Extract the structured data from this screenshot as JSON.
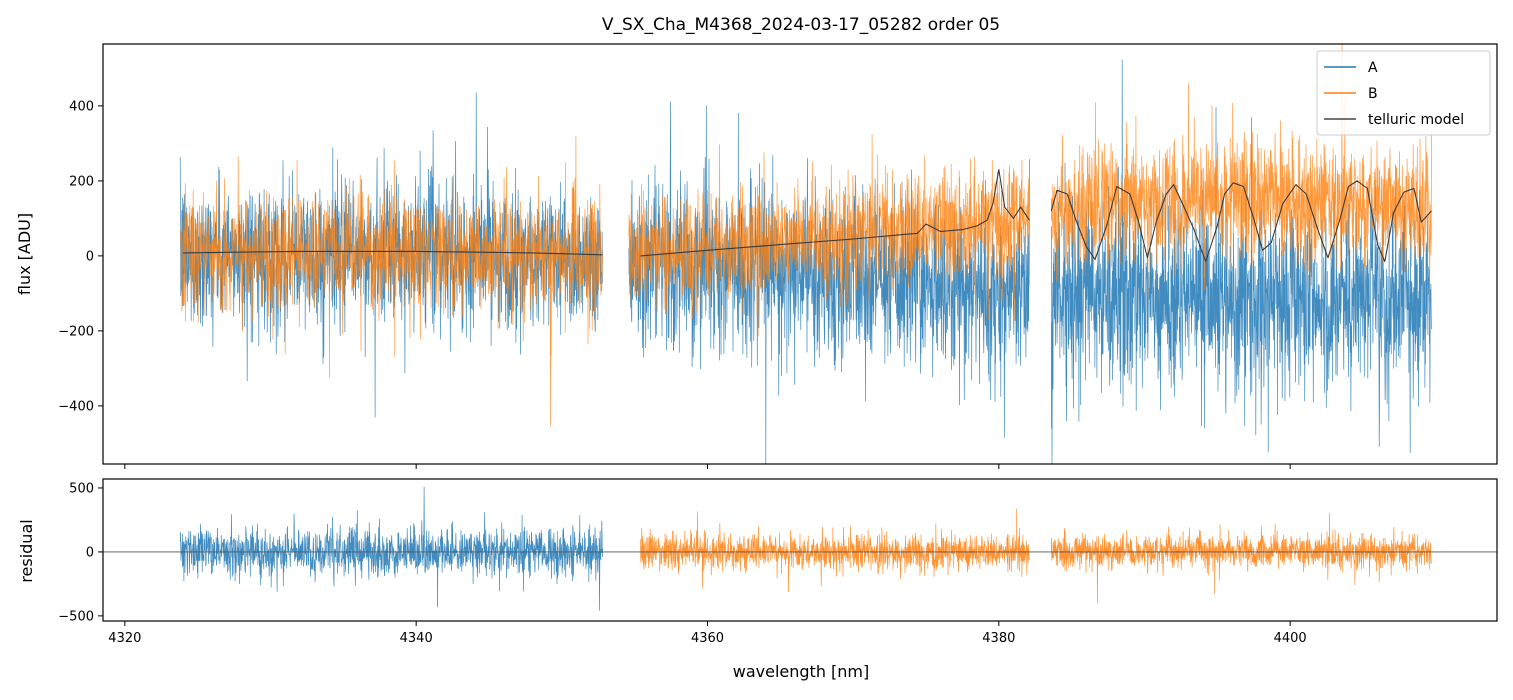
{
  "chart_data": [
    {
      "type": "line",
      "panel": "main",
      "title": "V_SX_Cha_M4368_2024-03-17_05282  order 05",
      "xlabel": "",
      "ylabel": "flux [ADU]",
      "xlim": [
        4318.5,
        4414.2
      ],
      "ylim": [
        -555,
        565
      ],
      "xticks": [
        4320,
        4340,
        4360,
        4380,
        4400
      ],
      "yticks": [
        -400,
        -200,
        0,
        200,
        400
      ],
      "ytick_labels": [
        "−400",
        "−200",
        "0",
        "200",
        "400"
      ],
      "legend": {
        "placement": "top-right",
        "entries": [
          "A",
          "B",
          "telluric model"
        ]
      },
      "segments": [
        {
          "x_range": [
            4323.8,
            4352.8
          ],
          "A_noise": 95,
          "B_noise": 75
        },
        {
          "x_range": [
            4354.6,
            4382.1
          ],
          "A_noise": 110,
          "B_noise": 75
        },
        {
          "x_range": [
            4383.6,
            4409.7
          ],
          "A_noise": 120,
          "B_noise": 80
        }
      ],
      "series": [
        {
          "name": "A",
          "color": "#1f77b4",
          "description": "noisy flux, mean ~0 in first segment, drifting to ~-100 at long wavelengths",
          "x": [
            4324,
            4330,
            4336,
            4342,
            4348,
            4352.5,
            4355,
            4360,
            4365,
            4370,
            4375,
            4380,
            4382,
            4384,
            4390,
            4396,
            4402,
            4409.5
          ],
          "y": [
            0,
            5,
            0,
            5,
            0,
            0,
            -20,
            -30,
            -50,
            -60,
            -80,
            -90,
            -100,
            -100,
            -110,
            -110,
            -120,
            -100
          ]
        },
        {
          "name": "B",
          "color": "#ff7f0e",
          "description": "noisy flux closely following the telluric model",
          "x": [
            4324,
            4330,
            4336,
            4342,
            4348,
            4352.5,
            4355,
            4360,
            4365,
            4370,
            4375,
            4380,
            4382,
            4384,
            4390,
            4396,
            4402,
            4409.5
          ],
          "y": [
            10,
            10,
            10,
            8,
            5,
            5,
            0,
            15,
            30,
            50,
            70,
            90,
            95,
            120,
            150,
            160,
            150,
            120
          ]
        },
        {
          "name": "telluric model",
          "color": "#444444",
          "x": [
            4324,
            4332,
            4340,
            4348,
            4352.8,
            4355.4,
            4360,
            4365,
            4370,
            4373.8,
            4374.4,
            4375,
            4376,
            4377.5,
            4378.5,
            4379.2,
            4379.6,
            4380.0,
            4380.4,
            4381,
            4381.5,
            4382.1,
            4383.6,
            4384.0,
            4384.7,
            4385.3,
            4386.0,
            4386.6,
            4387.4,
            4388.1,
            4389.0,
            4389.6,
            4390.2,
            4390.8,
            4391.5,
            4392.0,
            4392.6,
            4393.4,
            4394.2,
            4395.0,
            4395.5,
            4396.1,
            4396.8,
            4397.5,
            4398.1,
            4398.7,
            4399.5,
            4400.4,
            4401.1,
            4401.9,
            4402.6,
            4403.4,
            4404.0,
            4404.6,
            4405.3,
            4406.0,
            4406.5,
            4407.1,
            4407.8,
            4408.5,
            4409.0,
            4409.7
          ],
          "y": [
            8,
            12,
            12,
            8,
            3,
            0,
            15,
            30,
            45,
            58,
            60,
            85,
            65,
            70,
            80,
            95,
            140,
            230,
            130,
            100,
            130,
            95,
            120,
            175,
            165,
            95,
            25,
            -10,
            80,
            185,
            165,
            90,
            -5,
            90,
            165,
            190,
            140,
            70,
            -15,
            80,
            165,
            195,
            185,
            100,
            15,
            35,
            140,
            190,
            165,
            70,
            -5,
            95,
            185,
            200,
            180,
            30,
            -15,
            115,
            170,
            180,
            90,
            120
          ]
        }
      ]
    },
    {
      "type": "line",
      "panel": "residual",
      "title": "",
      "xlabel": "wavelength [nm]",
      "ylabel": "residual",
      "xlim": [
        4318.5,
        4414.2
      ],
      "ylim": [
        -540,
        570
      ],
      "xticks": [
        4320,
        4340,
        4360,
        4380,
        4400
      ],
      "xtick_labels": [
        "4320",
        "4340",
        "4360",
        "4380",
        "4400"
      ],
      "yticks": [
        -500,
        0,
        500
      ],
      "ytick_labels": [
        "−500",
        "0",
        "500"
      ],
      "zero_line": 0,
      "series": [
        {
          "name": "A residual",
          "color": "#1f77b4",
          "x_range": [
            4323.8,
            4352.8
          ],
          "noise": 95
        },
        {
          "name": "B residual (seg 2)",
          "color": "#ff7f0e",
          "x_range": [
            4355.4,
            4382.1
          ],
          "noise": 70
        },
        {
          "name": "B residual (seg 3)",
          "color": "#ff7f0e",
          "x_range": [
            4383.6,
            4409.7
          ],
          "noise": 65
        }
      ]
    }
  ]
}
